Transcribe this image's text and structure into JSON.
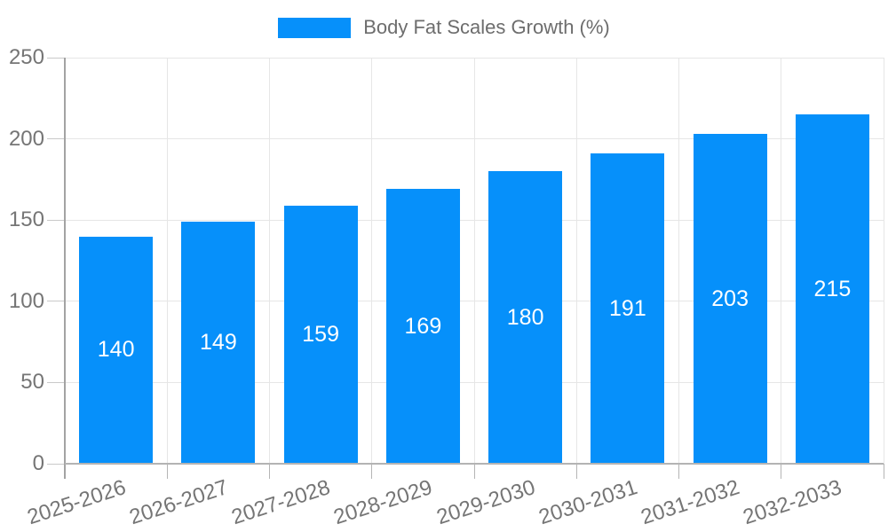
{
  "chart_data": {
    "type": "bar",
    "title": "Body Fat Scales Growth (%)",
    "categories": [
      "2025-2026",
      "2026-2027",
      "2027-2028",
      "2028-2029",
      "2029-2030",
      "2030-2031",
      "2031-2032",
      "2032-2033"
    ],
    "values": [
      140,
      149,
      159,
      169,
      180,
      191,
      203,
      215
    ],
    "y_ticks": [
      0,
      50,
      100,
      150,
      200,
      250
    ],
    "ylim": [
      0,
      250
    ],
    "xlabel": "",
    "ylabel": "",
    "grid": true,
    "legend_position": "top-center",
    "value_labels": "inside-center",
    "colors": {
      "bar": "#0690fa",
      "value_label": "#ffffff",
      "axis_text": "#757575",
      "legend_text": "#6d6d6d",
      "gridline": "#e6e6e6",
      "axis_line": "#b3b3b3"
    }
  }
}
